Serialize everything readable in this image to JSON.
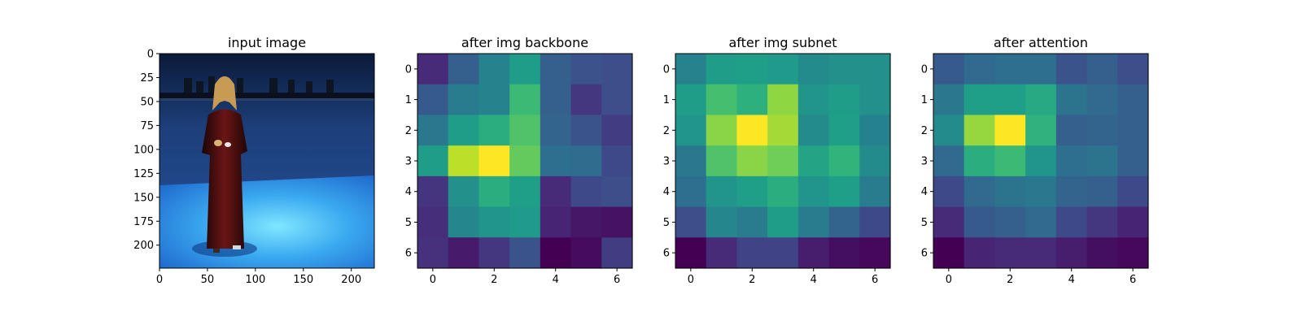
{
  "chart_data": [
    {
      "type": "image",
      "title": "input image",
      "xlim": [
        0,
        224
      ],
      "ylim": [
        224,
        0
      ],
      "xticks": [
        0,
        50,
        100,
        150,
        200
      ],
      "yticks": [
        0,
        25,
        50,
        75,
        100,
        125,
        150,
        175,
        200
      ],
      "content": "photo of a person in a long red dress standing on a blue stage with lighting rig"
    },
    {
      "type": "heatmap",
      "title": "after img backbone",
      "colormap": "viridis",
      "xticks": [
        0,
        2,
        4,
        6
      ],
      "yticks": [
        0,
        1,
        2,
        3,
        4,
        5,
        6
      ],
      "values": [
        [
          0.12,
          0.3,
          0.45,
          0.55,
          0.3,
          0.25,
          0.24
        ],
        [
          0.28,
          0.42,
          0.45,
          0.68,
          0.3,
          0.16,
          0.24
        ],
        [
          0.4,
          0.55,
          0.62,
          0.72,
          0.32,
          0.26,
          0.18
        ],
        [
          0.55,
          0.9,
          1.0,
          0.76,
          0.36,
          0.35,
          0.22
        ],
        [
          0.15,
          0.5,
          0.62,
          0.56,
          0.12,
          0.22,
          0.24
        ],
        [
          0.13,
          0.46,
          0.52,
          0.54,
          0.1,
          0.06,
          0.05
        ],
        [
          0.14,
          0.07,
          0.16,
          0.26,
          0.0,
          0.03,
          0.18
        ]
      ]
    },
    {
      "type": "heatmap",
      "title": "after img subnet",
      "colormap": "viridis",
      "xticks": [
        0,
        2,
        4,
        6
      ],
      "yticks": [
        0,
        1,
        2,
        3,
        4,
        5,
        6
      ],
      "values": [
        [
          0.45,
          0.55,
          0.56,
          0.54,
          0.48,
          0.5,
          0.5
        ],
        [
          0.55,
          0.7,
          0.63,
          0.83,
          0.52,
          0.55,
          0.5
        ],
        [
          0.52,
          0.82,
          1.0,
          0.86,
          0.48,
          0.56,
          0.44
        ],
        [
          0.4,
          0.72,
          0.82,
          0.78,
          0.58,
          0.65,
          0.48
        ],
        [
          0.36,
          0.52,
          0.56,
          0.62,
          0.52,
          0.56,
          0.42
        ],
        [
          0.24,
          0.46,
          0.42,
          0.55,
          0.42,
          0.32,
          0.22
        ],
        [
          0.0,
          0.12,
          0.2,
          0.2,
          0.08,
          0.04,
          0.02
        ]
      ]
    },
    {
      "type": "heatmap",
      "title": "after attention",
      "colormap": "viridis",
      "xticks": [
        0,
        2,
        4,
        6
      ],
      "yticks": [
        0,
        1,
        2,
        3,
        4,
        5,
        6
      ],
      "values": [
        [
          0.28,
          0.34,
          0.36,
          0.36,
          0.26,
          0.3,
          0.24
        ],
        [
          0.4,
          0.56,
          0.56,
          0.6,
          0.38,
          0.34,
          0.3
        ],
        [
          0.48,
          0.84,
          1.0,
          0.64,
          0.3,
          0.32,
          0.3
        ],
        [
          0.34,
          0.62,
          0.68,
          0.52,
          0.36,
          0.38,
          0.3
        ],
        [
          0.22,
          0.34,
          0.38,
          0.4,
          0.32,
          0.3,
          0.22
        ],
        [
          0.12,
          0.28,
          0.3,
          0.34,
          0.22,
          0.16,
          0.1
        ],
        [
          0.0,
          0.1,
          0.12,
          0.12,
          0.08,
          0.04,
          0.02
        ]
      ]
    }
  ]
}
